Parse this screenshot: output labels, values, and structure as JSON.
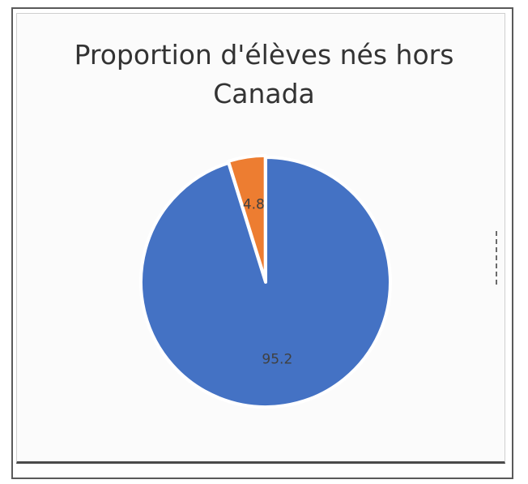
{
  "chart_data": {
    "type": "pie",
    "title_lines": [
      "Proportion d'élèves nés hors",
      "Canada"
    ],
    "slices": [
      {
        "label": "95.2",
        "value": 95.2,
        "color": "#4472C4"
      },
      {
        "label": "4.8",
        "value": 4.8,
        "color": "#ED7D31"
      }
    ],
    "start_angle_deg": 0,
    "direction": "clockwise",
    "exploded_slice": "4.8",
    "legend": "none"
  }
}
